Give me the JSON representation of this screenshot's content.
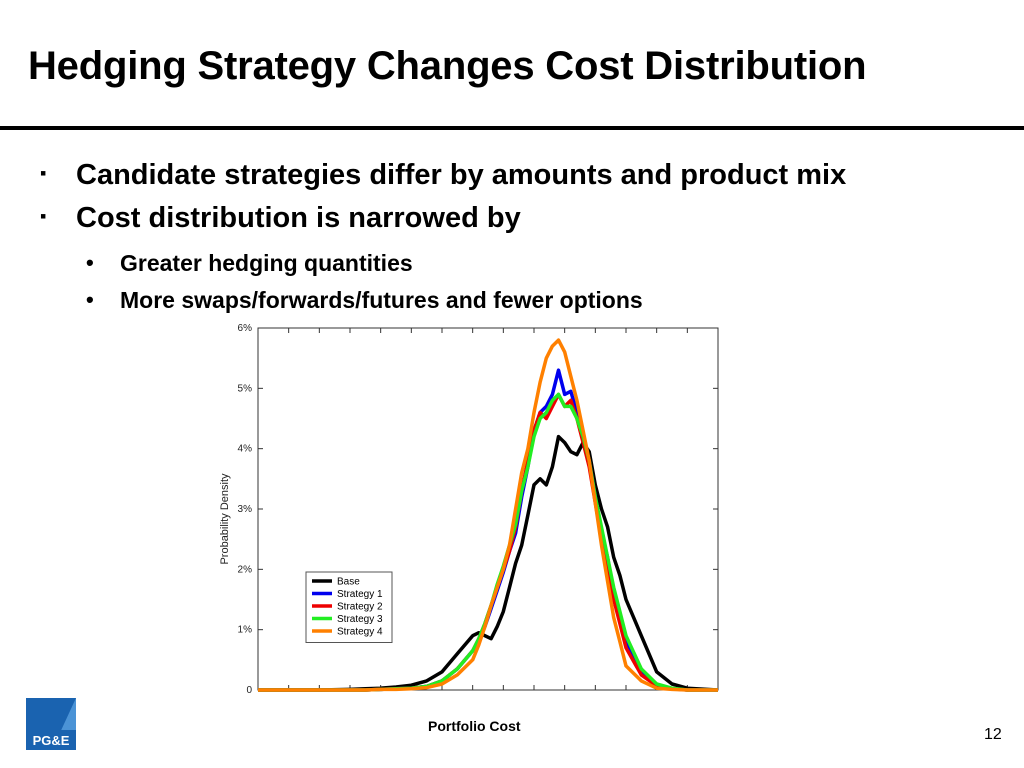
{
  "slide": {
    "title": "Hedging Strategy Changes Cost Distribution",
    "bullets": [
      {
        "text": "Candidate strategies differ by amounts and product mix",
        "marker": "▪"
      },
      {
        "text": "Cost distribution is narrowed by",
        "marker": "▪"
      }
    ],
    "sub_bullets": [
      {
        "text": "Greater hedging quantities",
        "marker": "•"
      },
      {
        "text": "More swaps/forwards/futures and fewer options",
        "marker": "•"
      }
    ],
    "page_number": "12",
    "logo_text": "PG&E"
  },
  "chart_data": {
    "type": "line",
    "title": "",
    "xlabel": "Portfolio Cost",
    "ylabel": "Probability Density",
    "xlim": [
      0,
      150
    ],
    "ylim": [
      0,
      0.06
    ],
    "yticks": [
      0,
      0.01,
      0.02,
      0.03,
      0.04,
      0.05,
      0.06
    ],
    "ytick_labels": [
      "0",
      "1%",
      "2%",
      "3%",
      "4%",
      "5%",
      "6%"
    ],
    "xticks": [
      0,
      10,
      20,
      30,
      40,
      50,
      60,
      70,
      80,
      90,
      100,
      110,
      120,
      130,
      140,
      150
    ],
    "grid": false,
    "legend_position": "lower-left",
    "x": [
      0,
      10,
      20,
      30,
      35,
      40,
      45,
      50,
      55,
      60,
      65,
      70,
      72,
      74,
      76,
      78,
      80,
      82,
      84,
      86,
      88,
      90,
      92,
      94,
      96,
      98,
      100,
      102,
      104,
      106,
      108,
      110,
      112,
      114,
      116,
      118,
      120,
      125,
      130,
      135,
      140,
      150
    ],
    "series": [
      {
        "name": "Base",
        "color": "#000000",
        "values": [
          0,
          0,
          0,
          0.0001,
          0.0002,
          0.0003,
          0.0005,
          0.0008,
          0.0015,
          0.003,
          0.006,
          0.009,
          0.0095,
          0.009,
          0.0085,
          0.0105,
          0.013,
          0.017,
          0.021,
          0.024,
          0.029,
          0.034,
          0.035,
          0.034,
          0.037,
          0.042,
          0.041,
          0.0395,
          0.039,
          0.041,
          0.0395,
          0.034,
          0.03,
          0.027,
          0.022,
          0.019,
          0.015,
          0.009,
          0.003,
          0.001,
          0.0003,
          0
        ]
      },
      {
        "name": "Strategy 1",
        "color": "#0000ee",
        "values": [
          0,
          0,
          0,
          0,
          0,
          0.0001,
          0.0002,
          0.0003,
          0.0006,
          0.0015,
          0.0035,
          0.0065,
          0.008,
          0.0105,
          0.0135,
          0.0165,
          0.0195,
          0.023,
          0.026,
          0.032,
          0.037,
          0.043,
          0.046,
          0.047,
          0.049,
          0.053,
          0.049,
          0.0495,
          0.046,
          0.042,
          0.038,
          0.032,
          0.026,
          0.022,
          0.016,
          0.012,
          0.008,
          0.003,
          0.0008,
          0.0002,
          0,
          0
        ]
      },
      {
        "name": "Strategy 2",
        "color": "#ee0000",
        "values": [
          0,
          0,
          0,
          0,
          0,
          0.0001,
          0.0002,
          0.0003,
          0.0006,
          0.0015,
          0.0035,
          0.0065,
          0.0085,
          0.011,
          0.014,
          0.017,
          0.02,
          0.023,
          0.027,
          0.033,
          0.038,
          0.043,
          0.046,
          0.045,
          0.047,
          0.049,
          0.047,
          0.048,
          0.045,
          0.041,
          0.037,
          0.031,
          0.025,
          0.021,
          0.015,
          0.011,
          0.007,
          0.0025,
          0.0007,
          0.0002,
          0,
          0
        ]
      },
      {
        "name": "Strategy 3",
        "color": "#22ee22",
        "values": [
          0,
          0,
          0,
          0,
          0,
          0.0001,
          0.0002,
          0.0003,
          0.0006,
          0.0015,
          0.0035,
          0.0065,
          0.0085,
          0.011,
          0.014,
          0.0175,
          0.0205,
          0.024,
          0.0275,
          0.033,
          0.037,
          0.042,
          0.045,
          0.046,
          0.048,
          0.049,
          0.047,
          0.047,
          0.045,
          0.042,
          0.038,
          0.032,
          0.027,
          0.022,
          0.017,
          0.013,
          0.009,
          0.0035,
          0.001,
          0.0003,
          0,
          0
        ]
      },
      {
        "name": "Strategy 4",
        "color": "#ff8000",
        "values": [
          0,
          0,
          0,
          0,
          0,
          0.0001,
          0.0001,
          0.0002,
          0.0004,
          0.001,
          0.0025,
          0.005,
          0.0075,
          0.0105,
          0.014,
          0.017,
          0.02,
          0.024,
          0.03,
          0.036,
          0.04,
          0.046,
          0.051,
          0.055,
          0.057,
          0.058,
          0.056,
          0.052,
          0.048,
          0.043,
          0.038,
          0.031,
          0.024,
          0.018,
          0.012,
          0.008,
          0.004,
          0.0015,
          0.0003,
          0.0001,
          0,
          0
        ]
      }
    ]
  }
}
